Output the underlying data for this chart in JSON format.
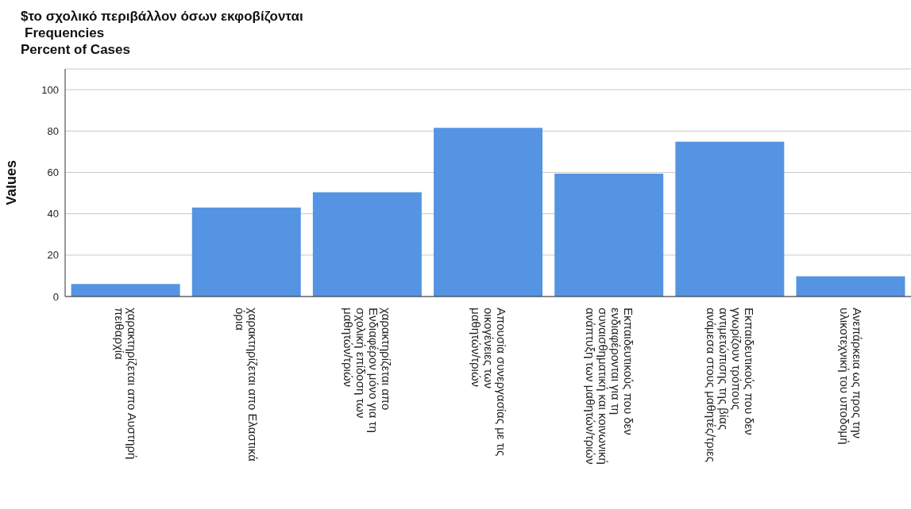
{
  "chart_data": {
    "type": "bar",
    "title": "$το σχολικό περιβάλλον όσων εκφοβίζονται",
    "subtitle": "Frequencies",
    "annotations": [
      "Percent of Cases"
    ],
    "ylabel": "Values",
    "categories": [
      "χαρακτηρίζεται απο Αυστηρή πειθαρχία",
      "χαρακτηρίζεται απο Ελαστικά όρια",
      "χαρακτηρίζεται απο Ενδιαφέρον μόνο για τη σχολική επίδοση των μαθητών/τριών",
      "Απουσία συνεργασίας με τις οικογένειες των μαθητών/τριών",
      "Εκπαιδευτικούς που δεν ενδιαφέρονται για τη συναισθηματική και κοινωνική ανάπτυξη των μαθητών/τριών",
      "Εκπαιδευτικούς που δεν γνωρίζουν τρόπους αντιμετώπισης της βίας ανάμεσα στους μαθητές/τριες",
      "Ανεπάρκεια ως προς την υλικοτεχνική του υποδομή"
    ],
    "values": [
      6,
      43,
      50.4,
      81.5,
      59.4,
      74.8,
      9.8
    ],
    "color": "#5594e2",
    "ylim": [
      0,
      110
    ],
    "yticks": [
      0,
      20,
      40,
      60,
      80,
      100
    ],
    "grid": "y"
  }
}
